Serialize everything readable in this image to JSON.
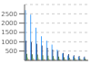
{
  "chart_data": {
    "type": "bar",
    "categories": [
      null,
      null,
      null,
      null,
      null,
      null,
      null,
      null,
      null,
      null,
      null,
      null
    ],
    "series": [
      {
        "color": "#1e90ff",
        "values": [
          2700,
          2450,
          1750,
          1300,
          1050,
          850,
          580,
          380,
          270,
          220,
          190,
          160
        ]
      },
      {
        "color": "#1a3368",
        "values": [
          1050,
          980,
          900,
          800,
          680,
          580,
          490,
          400,
          340,
          280,
          240,
          200
        ]
      },
      {
        "color": "#2e6b2e",
        "values": [
          350,
          330,
          310,
          280,
          260,
          230,
          200,
          170,
          150,
          130,
          110,
          95
        ]
      },
      {
        "color": "#7dc47d",
        "values": [
          160,
          150,
          140,
          125,
          110,
          95,
          80,
          65,
          55,
          45,
          38,
          32
        ]
      },
      {
        "color": "#cc2200",
        "values": [
          55,
          48,
          42,
          36,
          30,
          26,
          22,
          18,
          14,
          12,
          10,
          8
        ]
      },
      {
        "color": "#aaaaaa",
        "values": [
          35,
          30,
          26,
          22,
          18,
          15,
          12,
          10,
          8,
          7,
          6,
          5
        ]
      }
    ],
    "ylim": [
      0,
      3000
    ],
    "yticks": [
      500,
      1000,
      1500,
      2000,
      2500
    ],
    "grid": true,
    "tick_labels": "y"
  }
}
